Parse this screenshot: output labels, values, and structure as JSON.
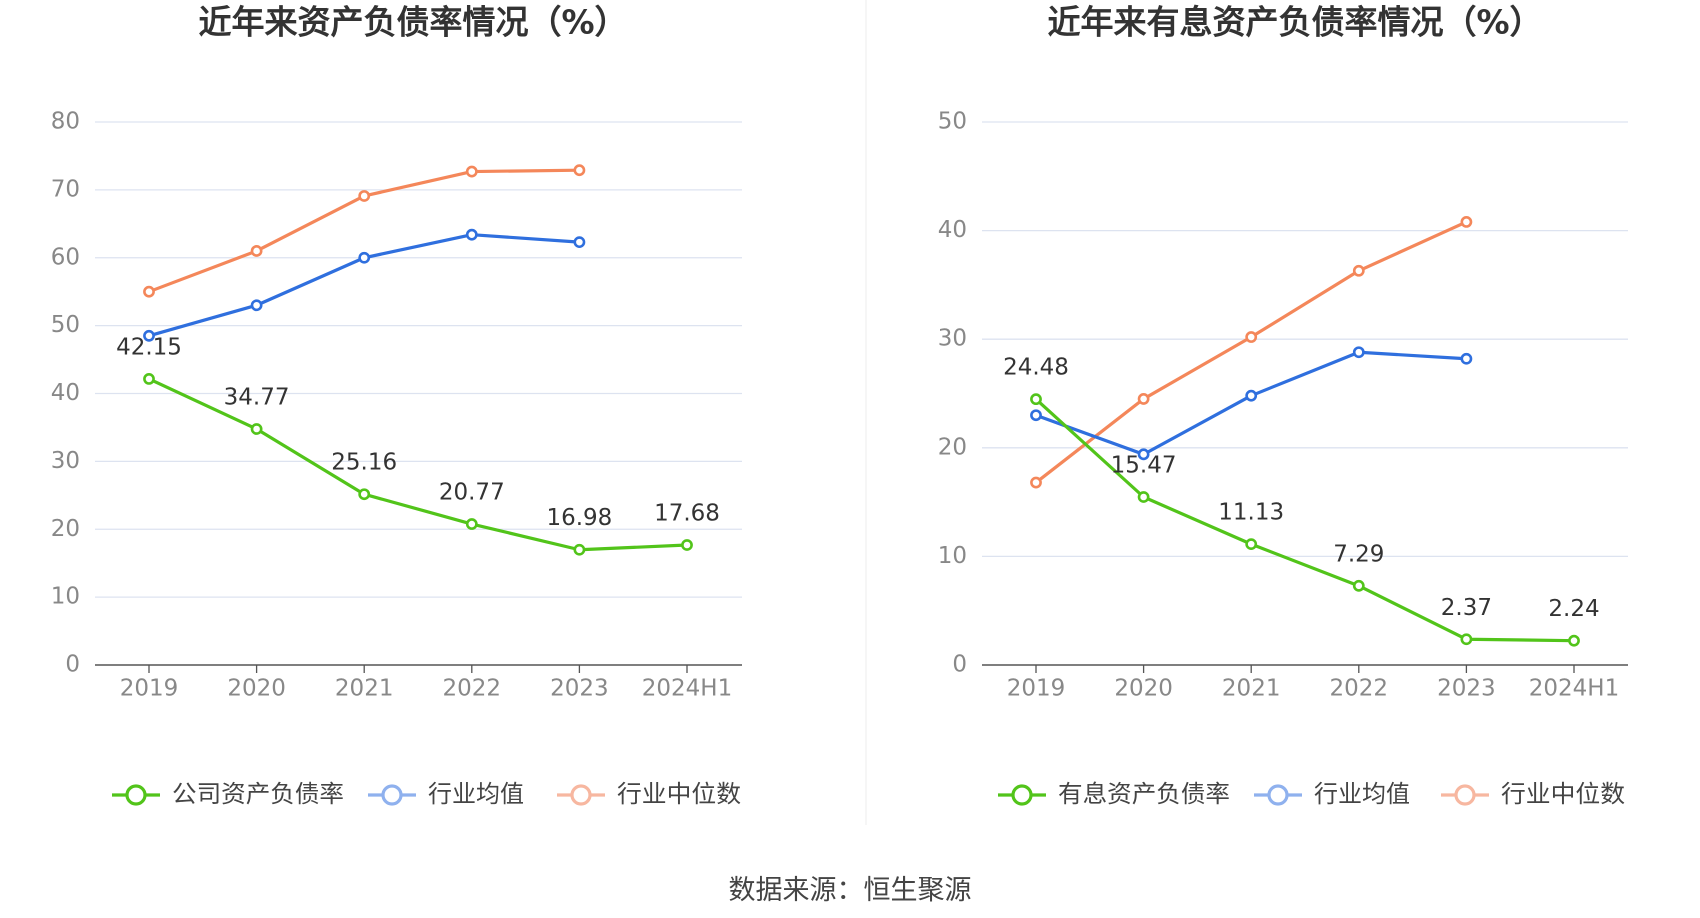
{
  "footer": {
    "source": "数据来源：恒生聚源"
  },
  "colors": {
    "green": "#52c41a",
    "blue": "#2f6fde",
    "orange": "#f4875a",
    "grid": "#dde3f0",
    "axis": "#555555",
    "tick_text": "#888888",
    "label_text": "#333333",
    "title_text": "#333333",
    "legend_text": "#444444",
    "legend_blue": "#8fb1ee",
    "legend_orange": "#f7b7a0"
  },
  "chart_data": [
    {
      "type": "line",
      "title": "近年来资产负债率情况（%）",
      "categories": [
        "2019",
        "2020",
        "2021",
        "2022",
        "2023",
        "2024H1"
      ],
      "yticks": [
        "0",
        "10",
        "20",
        "30",
        "40",
        "50",
        "60",
        "70",
        "80"
      ],
      "ylim": [
        0,
        80
      ],
      "grid": true,
      "legend_position": "bottom",
      "series": [
        {
          "name": "公司资产负债率",
          "color": "green",
          "legend_color": "green",
          "labeled": true,
          "values": [
            42.15,
            34.77,
            25.16,
            20.77,
            16.98,
            17.68
          ],
          "labels": [
            "42.15",
            "34.77",
            "25.16",
            "20.77",
            "16.98",
            "17.68"
          ]
        },
        {
          "name": "行业均值",
          "color": "blue",
          "legend_color": "legend_blue",
          "labeled": false,
          "values": [
            48.5,
            53.0,
            60.0,
            63.4,
            62.3,
            null
          ]
        },
        {
          "name": "行业中位数",
          "color": "orange",
          "legend_color": "legend_orange",
          "labeled": false,
          "values": [
            55.0,
            61.0,
            69.1,
            72.7,
            72.9,
            null
          ]
        }
      ]
    },
    {
      "type": "line",
      "title": "近年来有息资产负债率情况（%）",
      "categories": [
        "2019",
        "2020",
        "2021",
        "2022",
        "2023",
        "2024H1"
      ],
      "yticks": [
        "0",
        "10",
        "20",
        "30",
        "40",
        "50"
      ],
      "ylim": [
        0,
        50
      ],
      "grid": true,
      "legend_position": "bottom",
      "series": [
        {
          "name": "有息资产负债率",
          "color": "green",
          "legend_color": "green",
          "labeled": true,
          "values": [
            24.48,
            15.47,
            11.13,
            7.29,
            2.37,
            2.24
          ],
          "labels": [
            "24.48",
            "15.47",
            "11.13",
            "7.29",
            "2.37",
            "2.24"
          ]
        },
        {
          "name": "行业均值",
          "color": "blue",
          "legend_color": "legend_blue",
          "labeled": false,
          "values": [
            23.0,
            19.4,
            24.8,
            28.8,
            28.2,
            null
          ]
        },
        {
          "name": "行业中位数",
          "color": "orange",
          "legend_color": "legend_orange",
          "labeled": false,
          "values": [
            16.8,
            24.5,
            30.2,
            36.3,
            40.8,
            null
          ]
        }
      ]
    }
  ]
}
